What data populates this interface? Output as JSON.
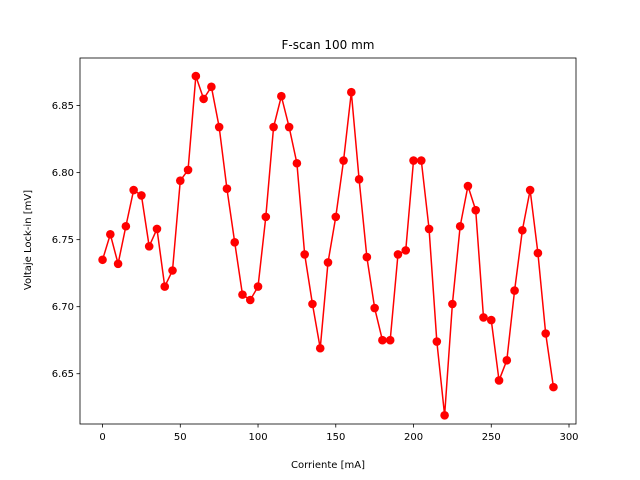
{
  "chart_data": {
    "type": "line",
    "title": "F-scan 100 mm",
    "xlabel": "Corriente [mA]",
    "ylabel": "Voltaje Lock-in [mV]",
    "xlim": [
      -14.5,
      304.5
    ],
    "ylim": [
      6.6125,
      6.8855
    ],
    "xticks": [
      0,
      50,
      100,
      150,
      200,
      250,
      300
    ],
    "yticks": [
      6.65,
      6.7,
      6.75,
      6.8,
      6.85
    ],
    "ytick_labels": [
      "6.65",
      "6.70",
      "6.75",
      "6.80",
      "6.85"
    ],
    "grid": false,
    "legend": "none",
    "series": [
      {
        "color": "#ff0000",
        "marker": "circle",
        "x": [
          0,
          5,
          10,
          15,
          20,
          25,
          30,
          35,
          40,
          45,
          50,
          55,
          60,
          65,
          70,
          75,
          80,
          85,
          90,
          95,
          100,
          105,
          110,
          115,
          120,
          125,
          130,
          135,
          140,
          145,
          150,
          155,
          160,
          165,
          170,
          175,
          180,
          185,
          190,
          195,
          200,
          205,
          210,
          215,
          220,
          225,
          230,
          235,
          240,
          245,
          250,
          255,
          260,
          265,
          270,
          275,
          280,
          285,
          290
        ],
        "y": [
          6.735,
          6.754,
          6.732,
          6.76,
          6.787,
          6.783,
          6.745,
          6.758,
          6.715,
          6.727,
          6.794,
          6.802,
          6.872,
          6.855,
          6.864,
          6.834,
          6.788,
          6.748,
          6.709,
          6.705,
          6.715,
          6.767,
          6.834,
          6.857,
          6.834,
          6.807,
          6.739,
          6.702,
          6.669,
          6.733,
          6.767,
          6.809,
          6.86,
          6.795,
          6.737,
          6.699,
          6.675,
          6.675,
          6.739,
          6.742,
          6.809,
          6.809,
          6.758,
          6.674,
          6.619,
          6.702,
          6.76,
          6.79,
          6.772,
          6.692,
          6.69,
          6.645,
          6.66,
          6.712,
          6.757,
          6.787,
          6.74,
          6.68,
          6.64
        ]
      }
    ]
  }
}
